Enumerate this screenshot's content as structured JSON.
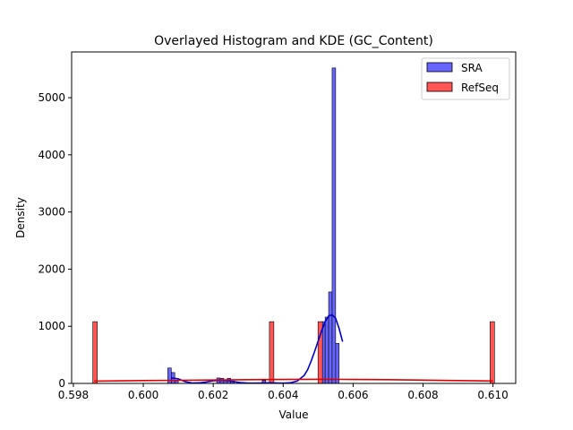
{
  "chart_data": {
    "type": "bar",
    "title": "Overlayed Histogram and KDE (GC_Content)",
    "xlabel": "Value",
    "ylabel": "Density",
    "xlim": [
      0.59795,
      0.61065
    ],
    "ylim": [
      0,
      5800
    ],
    "xticks": [
      0.598,
      0.6,
      0.602,
      0.604,
      0.606,
      0.608,
      0.61
    ],
    "xtick_labels": [
      "0.598",
      "0.600",
      "0.602",
      "0.604",
      "0.606",
      "0.608",
      "0.610"
    ],
    "yticks": [
      0,
      1000,
      2000,
      3000,
      4000,
      5000
    ],
    "ytick_labels": [
      "0",
      "1000",
      "2000",
      "3000",
      "4000",
      "5000"
    ],
    "grid": false,
    "legend_position": "top-right",
    "series": [
      {
        "name": "SRA",
        "color": "#6666ff",
        "edge_color": "#000000",
        "kde_color": "#0000cc",
        "bin_width": 0.0001,
        "bins": [
          {
            "x": 0.60075,
            "value": 270
          },
          {
            "x": 0.60085,
            "value": 190
          },
          {
            "x": 0.60095,
            "value": 45
          },
          {
            "x": 0.60215,
            "value": 95
          },
          {
            "x": 0.60225,
            "value": 90
          },
          {
            "x": 0.60235,
            "value": 55
          },
          {
            "x": 0.60245,
            "value": 90
          },
          {
            "x": 0.60255,
            "value": 40
          },
          {
            "x": 0.60345,
            "value": 50
          },
          {
            "x": 0.60505,
            "value": 1000
          },
          {
            "x": 0.60515,
            "value": 1080
          },
          {
            "x": 0.60525,
            "value": 1160
          },
          {
            "x": 0.60535,
            "value": 1600
          },
          {
            "x": 0.60545,
            "value": 5520
          },
          {
            "x": 0.60555,
            "value": 700
          }
        ],
        "kde": {
          "x": [
            0.6008,
            0.6009,
            0.601,
            0.6012,
            0.6014,
            0.6016,
            0.6018,
            0.602,
            0.6022,
            0.6024,
            0.6026,
            0.6028,
            0.603,
            0.6032,
            0.6034,
            0.6036,
            0.6038,
            0.604,
            0.6042,
            0.6044,
            0.6046,
            0.6047,
            0.6048,
            0.6049,
            0.605,
            0.6051,
            0.6052,
            0.6053,
            0.6054,
            0.6055,
            0.6056,
            0.6057
          ],
          "y": [
            95,
            90,
            80,
            30,
            8,
            10,
            25,
            45,
            55,
            50,
            30,
            12,
            5,
            5,
            8,
            10,
            8,
            5,
            10,
            40,
            140,
            240,
            390,
            560,
            740,
            920,
            1080,
            1180,
            1200,
            1140,
            960,
            730
          ]
        }
      },
      {
        "name": "RefSeq",
        "color": "#ff5555",
        "edge_color": "#000000",
        "kde_color": "#dd0000",
        "bin_width": 0.000127,
        "bins": [
          {
            "x": 0.59862,
            "value": 1080
          },
          {
            "x": 0.60367,
            "value": 1080
          },
          {
            "x": 0.60506,
            "value": 1080
          },
          {
            "x": 0.60998,
            "value": 1080
          }
        ],
        "kde": {
          "x": [
            0.5986,
            0.6,
            0.601,
            0.602,
            0.603,
            0.604,
            0.605,
            0.606,
            0.607,
            0.608,
            0.609,
            0.61
          ],
          "y": [
            40,
            50,
            55,
            60,
            65,
            70,
            72,
            70,
            65,
            58,
            50,
            42
          ]
        }
      }
    ]
  }
}
